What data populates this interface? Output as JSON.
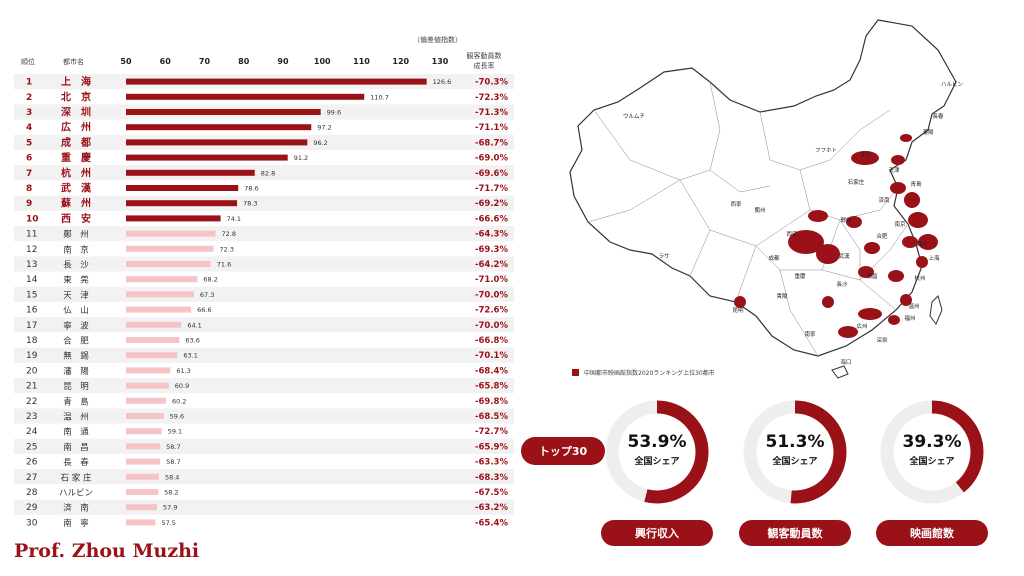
{
  "chart_data": {
    "type": "bar",
    "orientation": "horizontal",
    "unit_label": "（偏差値指数）",
    "columns": {
      "rank": "順位",
      "city": "都市名",
      "growth": [
        "観客動員数",
        "成長率"
      ]
    },
    "xticks": [
      50,
      60,
      70,
      80,
      90,
      100,
      110,
      120,
      130
    ],
    "xlim": [
      50,
      130
    ],
    "grid": false,
    "highlight_color": "#9b1118",
    "normal_color": "#f7c4c6",
    "rows": [
      {
        "rank": "1",
        "city": "上　海",
        "value": 126.6,
        "growth": "-70.3%"
      },
      {
        "rank": "2",
        "city": "北　京",
        "value": 110.7,
        "growth": "-72.3%"
      },
      {
        "rank": "3",
        "city": "深　圳",
        "value": 99.6,
        "growth": "-71.3%"
      },
      {
        "rank": "4",
        "city": "広　州",
        "value": 97.2,
        "growth": "-71.1%"
      },
      {
        "rank": "5",
        "city": "成　都",
        "value": 96.2,
        "growth": "-68.7%"
      },
      {
        "rank": "6",
        "city": "重　慶",
        "value": 91.2,
        "growth": "-69.0%"
      },
      {
        "rank": "7",
        "city": "杭　州",
        "value": 82.8,
        "growth": "-69.6%"
      },
      {
        "rank": "8",
        "city": "武　漢",
        "value": 78.6,
        "growth": "-71.7%"
      },
      {
        "rank": "9",
        "city": "蘇　州",
        "value": 78.3,
        "growth": "-69.2%"
      },
      {
        "rank": "10",
        "city": "西　安",
        "value": 74.1,
        "growth": "-66.6%"
      },
      {
        "rank": "11",
        "city": "鄭　州",
        "value": 72.8,
        "growth": "-64.3%"
      },
      {
        "rank": "12",
        "city": "南　京",
        "value": 72.3,
        "growth": "-69.3%"
      },
      {
        "rank": "13",
        "city": "長　沙",
        "value": 71.6,
        "growth": "-64.2%"
      },
      {
        "rank": "14",
        "city": "東　莞",
        "value": 68.2,
        "growth": "-71.0%"
      },
      {
        "rank": "15",
        "city": "天　津",
        "value": 67.3,
        "growth": "-70.0%"
      },
      {
        "rank": "16",
        "city": "仏　山",
        "value": 66.6,
        "growth": "-72.6%"
      },
      {
        "rank": "17",
        "city": "寧　波",
        "value": 64.1,
        "growth": "-70.0%"
      },
      {
        "rank": "18",
        "city": "合　肥",
        "value": 63.6,
        "growth": "-66.8%"
      },
      {
        "rank": "19",
        "city": "無　錫",
        "value": 63.1,
        "growth": "-70.1%"
      },
      {
        "rank": "20",
        "city": "瀋　陽",
        "value": 61.3,
        "growth": "-68.4%"
      },
      {
        "rank": "21",
        "city": "昆　明",
        "value": 60.9,
        "growth": "-65.8%"
      },
      {
        "rank": "22",
        "city": "青　島",
        "value": 60.2,
        "growth": "-69.8%"
      },
      {
        "rank": "23",
        "city": "温　州",
        "value": 59.6,
        "growth": "-68.5%"
      },
      {
        "rank": "24",
        "city": "南　通",
        "value": 59.1,
        "growth": "-72.7%"
      },
      {
        "rank": "25",
        "city": "南　昌",
        "value": 58.7,
        "growth": "-65.9%"
      },
      {
        "rank": "26",
        "city": "長　春",
        "value": 58.7,
        "growth": "-63.3%"
      },
      {
        "rank": "27",
        "city": "石 家 庄",
        "value": 58.4,
        "growth": "-68.3%"
      },
      {
        "rank": "28",
        "city": "ハルビン",
        "value": 58.2,
        "growth": "-67.5%"
      },
      {
        "rank": "29",
        "city": "済　南",
        "value": 57.9,
        "growth": "-63.2%"
      },
      {
        "rank": "30",
        "city": "南　寧",
        "value": 57.5,
        "growth": "-65.4%"
      }
    ]
  },
  "map": {
    "legend": "中国都市映画館指数2020ランキング上位30都市",
    "labels": [
      "ハルビン",
      "長春",
      "瀋陽",
      "北京",
      "天津",
      "石家庄",
      "済南",
      "青島",
      "鄭州",
      "西安",
      "南京",
      "合肥",
      "蘇州",
      "上海",
      "武漢",
      "成都",
      "重慶",
      "長沙",
      "南昌",
      "杭州",
      "温州",
      "昆明",
      "南寧",
      "広州",
      "深圳",
      "ウルムチ",
      "ラサ",
      "フフホト",
      "西寧",
      "蘭州",
      "貴陽",
      "福州",
      "海口"
    ]
  },
  "top30_label": "トップ30",
  "shares": [
    {
      "value": "53.9%",
      "fraction": 0.539,
      "sub": "全国シェア",
      "label": "興行収入"
    },
    {
      "value": "51.3%",
      "fraction": 0.513,
      "sub": "全国シェア",
      "label": "観客動員数"
    },
    {
      "value": "39.3%",
      "fraction": 0.393,
      "sub": "全国シェア",
      "label": "映画館数"
    }
  ],
  "colors": {
    "accent": "#9b1118",
    "ring_bg": "#eeeeee"
  },
  "author": "Prof. Zhou Muzhi"
}
